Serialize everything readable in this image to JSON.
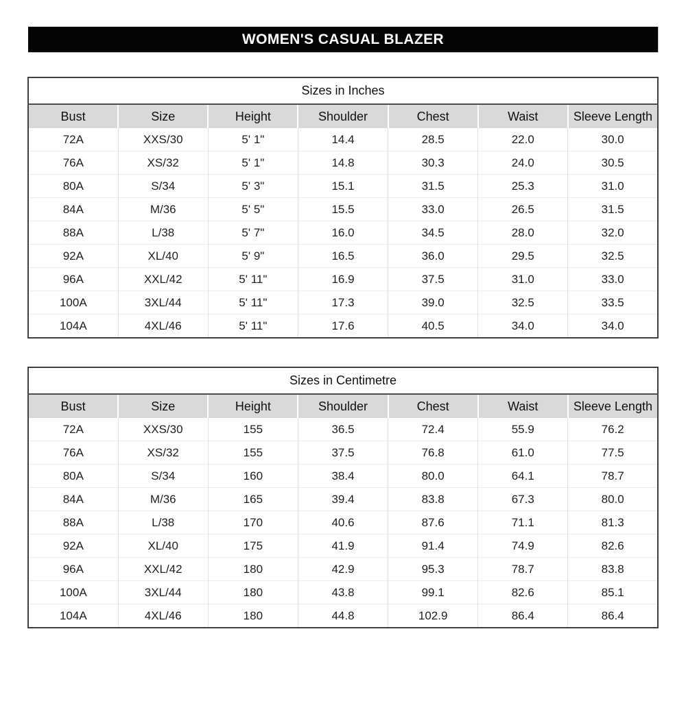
{
  "banner": {
    "title": "WOMEN'S CASUAL BLAZER",
    "bg_color": "#050505",
    "text_color": "#ffffff"
  },
  "colors": {
    "header_row_bg": "#d9d9d9",
    "outer_border": "#3f3f3f",
    "gridline": "#e2e2e2"
  },
  "tables": [
    {
      "title": "Sizes in Inches",
      "columns": [
        "Bust",
        "Size",
        "Height",
        "Shoulder",
        "Chest",
        "Waist",
        "Sleeve Length"
      ],
      "rows": [
        [
          "72A",
          "XXS/30",
          "5' 1\"",
          "14.4",
          "28.5",
          "22.0",
          "30.0"
        ],
        [
          "76A",
          "XS/32",
          "5' 1\"",
          "14.8",
          "30.3",
          "24.0",
          "30.5"
        ],
        [
          "80A",
          "S/34",
          "5' 3\"",
          "15.1",
          "31.5",
          "25.3",
          "31.0"
        ],
        [
          "84A",
          "M/36",
          "5' 5\"",
          "15.5",
          "33.0",
          "26.5",
          "31.5"
        ],
        [
          "88A",
          "L/38",
          "5' 7\"",
          "16.0",
          "34.5",
          "28.0",
          "32.0"
        ],
        [
          "92A",
          "XL/40",
          "5' 9\"",
          "16.5",
          "36.0",
          "29.5",
          "32.5"
        ],
        [
          "96A",
          "XXL/42",
          "5' 11\"",
          "16.9",
          "37.5",
          "31.0",
          "33.0"
        ],
        [
          "100A",
          "3XL/44",
          "5' 11\"",
          "17.3",
          "39.0",
          "32.5",
          "33.5"
        ],
        [
          "104A",
          "4XL/46",
          "5' 11\"",
          "17.6",
          "40.5",
          "34.0",
          "34.0"
        ]
      ]
    },
    {
      "title": "Sizes in Centimetre",
      "columns": [
        "Bust",
        "Size",
        "Height",
        "Shoulder",
        "Chest",
        "Waist",
        "Sleeve Length"
      ],
      "rows": [
        [
          "72A",
          "XXS/30",
          "155",
          "36.5",
          "72.4",
          "55.9",
          "76.2"
        ],
        [
          "76A",
          "XS/32",
          "155",
          "37.5",
          "76.8",
          "61.0",
          "77.5"
        ],
        [
          "80A",
          "S/34",
          "160",
          "38.4",
          "80.0",
          "64.1",
          "78.7"
        ],
        [
          "84A",
          "M/36",
          "165",
          "39.4",
          "83.8",
          "67.3",
          "80.0"
        ],
        [
          "88A",
          "L/38",
          "170",
          "40.6",
          "87.6",
          "71.1",
          "81.3"
        ],
        [
          "92A",
          "XL/40",
          "175",
          "41.9",
          "91.4",
          "74.9",
          "82.6"
        ],
        [
          "96A",
          "XXL/42",
          "180",
          "42.9",
          "95.3",
          "78.7",
          "83.8"
        ],
        [
          "100A",
          "3XL/44",
          "180",
          "43.8",
          "99.1",
          "82.6",
          "85.1"
        ],
        [
          "104A",
          "4XL/46",
          "180",
          "44.8",
          "102.9",
          "86.4",
          "86.4"
        ]
      ]
    }
  ]
}
